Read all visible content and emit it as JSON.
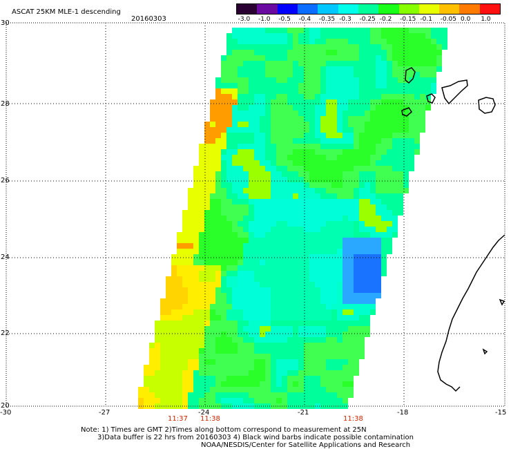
{
  "header": {
    "title": "ASCAT 25KM MLE-1 descending",
    "date": "20160303"
  },
  "colorbar": {
    "labels": [
      "-3.0",
      "-1.0",
      "-0.5",
      "-0.4",
      "-0.35",
      "-0.3",
      "-0.25",
      "-0.2",
      "-0.15",
      "-0.1",
      "-0.05",
      "0.0",
      "1.0"
    ],
    "colors": [
      "#2a0033",
      "#6a0aa0",
      "#0000ff",
      "#0a6dff",
      "#00c8ff",
      "#00ffea",
      "#00ff9a",
      "#1aff1a",
      "#88ff00",
      "#e8ff00",
      "#ffc000",
      "#ff7a00",
      "#ff1010"
    ]
  },
  "axes": {
    "x_ticks": [
      "-30",
      "-27",
      "-24",
      "-21",
      "-18",
      "-15"
    ],
    "y_ticks": [
      "30",
      "28",
      "26",
      "24",
      "22",
      "20"
    ]
  },
  "times": [
    "11:37",
    "11:38",
    "11:38"
  ],
  "notes": {
    "line1": "Note: 1) Times are GMT 2)Times along bottom correspond to measurement at 25N",
    "line2": "3)Data buffer is 22 hrs from 20160303 4) Black wind barbs indicate possible contamination",
    "line3": "NOAA/NESDIS/Center for Satellite Applications and Research"
  }
}
